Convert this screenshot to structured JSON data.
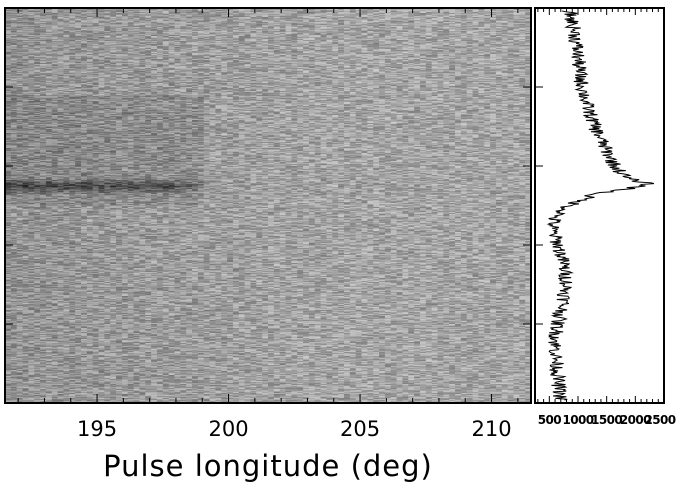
{
  "chart_data": [
    {
      "type": "heatmap",
      "title": "",
      "xlabel": "Pulse longitude (deg)",
      "ylabel": "",
      "xlim": [
        191.5,
        211.5
      ],
      "x_ticks": [
        195,
        200,
        205,
        210
      ],
      "x_tick_labels": [
        "195",
        "200",
        "205",
        "210"
      ],
      "colormap": "grayscale (dark = high intensity)",
      "rows": 480,
      "features": [
        {
          "description": "dark horizontal band",
          "x_range": [
            191.5,
            200.0
          ],
          "row_fraction": 0.45
        },
        {
          "description": "darker region",
          "x_range": [
            191.5,
            199.0
          ],
          "row_fraction_range": [
            0.25,
            0.5
          ]
        }
      ]
    },
    {
      "type": "line",
      "title": "",
      "orientation": "vertical",
      "xlabel": "",
      "ylabel": "",
      "xlim": [
        250,
        2500
      ],
      "x_ticks": [
        500,
        1000,
        1500,
        2000,
        2500
      ],
      "x_tick_labels": [
        "500",
        "1000",
        "1500",
        "2000",
        "2500"
      ],
      "profile": {
        "rows": [
          0.0,
          0.06,
          0.12,
          0.18,
          0.24,
          0.3,
          0.36,
          0.4,
          0.43,
          0.445,
          0.455,
          0.47,
          0.5,
          0.53,
          0.56,
          0.6,
          0.65,
          0.7,
          0.75,
          0.8,
          0.85,
          0.9,
          0.95,
          1.0
        ],
        "values": [
          850,
          950,
          1000,
          1050,
          1150,
          1300,
          1500,
          1650,
          1850,
          2250,
          1950,
          1300,
          850,
          600,
          550,
          650,
          750,
          800,
          750,
          650,
          600,
          620,
          650,
          700
        ]
      }
    }
  ]
}
